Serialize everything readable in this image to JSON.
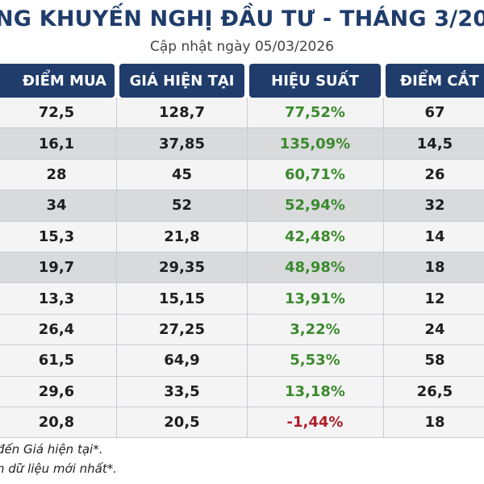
{
  "header": {
    "title": "NG KHUYẾN NGHỊ ĐẦU TƯ - THÁNG 3/20",
    "subtitle": "Cập nhật ngày 05/03/2026"
  },
  "table": {
    "columns": [
      "ĐIỂM MUA",
      "GIÁ HIỆN TẠI",
      "HIỆU SUẤT",
      "ĐIỂM CẮT L"
    ],
    "rows": [
      {
        "buy": "72,5",
        "current": "128,7",
        "perf": "77,52%",
        "cut": "67",
        "trend": "positive"
      },
      {
        "buy": "16,1",
        "current": "37,85",
        "perf": "135,09%",
        "cut": "14,5",
        "trend": "positive"
      },
      {
        "buy": "28",
        "current": "45",
        "perf": "60,71%",
        "cut": "26",
        "trend": "positive"
      },
      {
        "buy": "34",
        "current": "52",
        "perf": "52,94%",
        "cut": "32",
        "trend": "positive"
      },
      {
        "buy": "15,3",
        "current": "21,8",
        "perf": "42,48%",
        "cut": "14",
        "trend": "positive"
      },
      {
        "buy": "19,7",
        "current": "29,35",
        "perf": "48,98%",
        "cut": "18",
        "trend": "positive"
      },
      {
        "buy": "13,3",
        "current": "15,15",
        "perf": "13,91%",
        "cut": "12",
        "trend": "positive"
      },
      {
        "buy": "26,4",
        "current": "27,25",
        "perf": "3,22%",
        "cut": "24",
        "trend": "positive"
      },
      {
        "buy": "61,5",
        "current": "64,9",
        "perf": "5,53%",
        "cut": "58",
        "trend": "positive"
      },
      {
        "buy": "29,6",
        "current": "33,5",
        "perf": "13,18%",
        "cut": "26,5",
        "trend": "positive"
      },
      {
        "buy": "20,8",
        "current": "20,5",
        "perf": "-1,44%",
        "cut": "18",
        "trend": "negative"
      }
    ]
  },
  "footnotes": [
    "đến Giá hiện tại*.",
    "n dữ liệu mới nhất*."
  ],
  "colors": {
    "header_bg": "#1f3c6b",
    "positive": "#3b8a2e",
    "negative": "#b0202a",
    "row_shaded": "#d9dadc",
    "row_plain": "#f4f4f4"
  }
}
